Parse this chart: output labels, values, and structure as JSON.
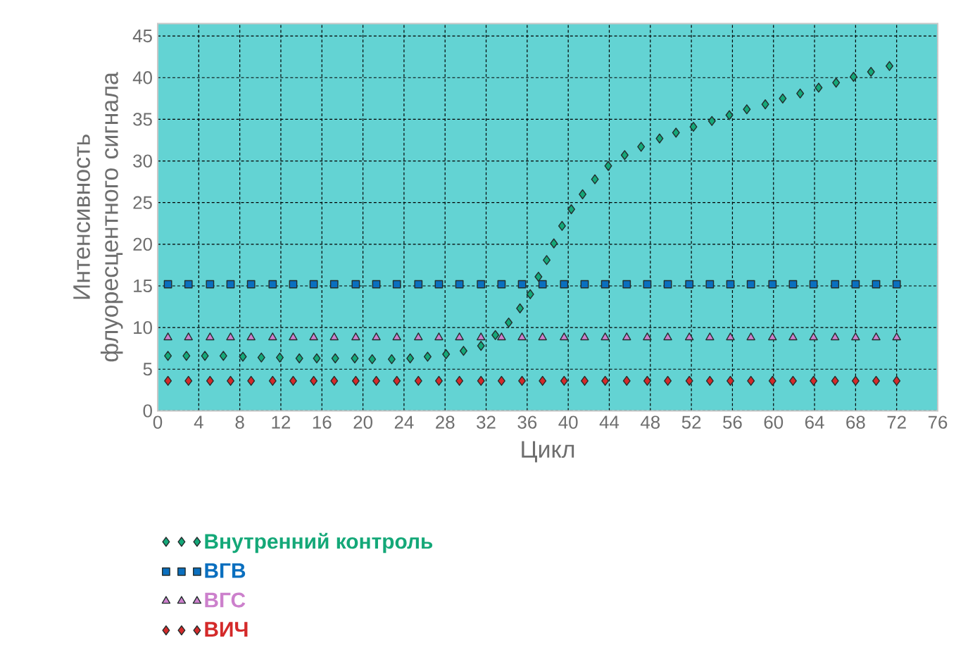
{
  "chart_data": {
    "type": "scatter",
    "xlabel": "Цикл",
    "ylabel": "Интенсивность флуоресцентного сигнала",
    "x": [
      1.0,
      3.0,
      5.1,
      7.1,
      9.1,
      11.2,
      13.2,
      15.2,
      17.2,
      19.3,
      21.3,
      23.3,
      25.4,
      27.4,
      29.4,
      31.5,
      33.5,
      35.5,
      37.5,
      39.6,
      41.6,
      43.6,
      45.7,
      47.7,
      49.7,
      51.8,
      53.8,
      55.8,
      57.8,
      59.9,
      61.9,
      63.9,
      66.0,
      68.0,
      70.0,
      72.0
    ],
    "series": [
      {
        "name": "Внутренний контроль",
        "color": "#14a878",
        "marker": "diamond",
        "x": [
          1.0,
          2.8,
          4.6,
          6.4,
          8.3,
          10.1,
          11.9,
          13.8,
          15.5,
          17.3,
          19.2,
          20.9,
          22.8,
          24.6,
          26.3,
          28.1,
          29.8,
          31.5,
          32.9,
          34.2,
          35.3,
          36.3,
          37.1,
          37.9,
          38.6,
          39.4,
          40.3,
          41.4,
          42.6,
          43.9,
          45.5,
          47.1,
          48.9,
          50.5,
          52.2,
          54.0,
          55.7,
          57.4,
          59.2,
          60.9,
          62.6,
          64.4,
          66.1,
          67.8,
          69.5,
          71.3
        ],
        "values": [
          6.6,
          6.6,
          6.6,
          6.6,
          6.5,
          6.4,
          6.4,
          6.3,
          6.3,
          6.3,
          6.3,
          6.2,
          6.2,
          6.3,
          6.5,
          6.8,
          7.2,
          7.8,
          9.1,
          10.6,
          12.3,
          14.0,
          16.1,
          18.1,
          20.1,
          22.2,
          24.2,
          26.0,
          27.8,
          29.4,
          30.7,
          31.7,
          32.7,
          33.4,
          34.1,
          34.8,
          35.5,
          36.2,
          36.8,
          37.5,
          38.1,
          38.8,
          39.4,
          40.1,
          40.7,
          41.4
        ]
      },
      {
        "name": "ВГВ",
        "color": "#0a6fbf",
        "marker": "square",
        "values": [
          15.2,
          15.2,
          15.2,
          15.2,
          15.2,
          15.2,
          15.2,
          15.2,
          15.2,
          15.2,
          15.2,
          15.2,
          15.2,
          15.2,
          15.2,
          15.2,
          15.2,
          15.2,
          15.2,
          15.2,
          15.2,
          15.2,
          15.2,
          15.2,
          15.2,
          15.2,
          15.2,
          15.2,
          15.2,
          15.2,
          15.2,
          15.2,
          15.2,
          15.2,
          15.2,
          15.2
        ]
      },
      {
        "name": "ВГС",
        "color": "#cc80cc",
        "marker": "triangle",
        "values": [
          8.8,
          8.8,
          8.8,
          8.8,
          8.8,
          8.8,
          8.8,
          8.8,
          8.8,
          8.8,
          8.8,
          8.8,
          8.8,
          8.8,
          8.8,
          8.8,
          8.8,
          8.8,
          8.8,
          8.8,
          8.8,
          8.8,
          8.8,
          8.8,
          8.8,
          8.8,
          8.8,
          8.8,
          8.8,
          8.8,
          8.8,
          8.8,
          8.8,
          8.8,
          8.8,
          8.8
        ]
      },
      {
        "name": "ВИЧ",
        "color": "#d42a2a",
        "marker": "diamond",
        "values": [
          3.6,
          3.6,
          3.6,
          3.6,
          3.6,
          3.6,
          3.6,
          3.6,
          3.6,
          3.6,
          3.6,
          3.6,
          3.6,
          3.6,
          3.6,
          3.6,
          3.6,
          3.6,
          3.6,
          3.6,
          3.6,
          3.6,
          3.6,
          3.6,
          3.6,
          3.6,
          3.6,
          3.6,
          3.6,
          3.6,
          3.6,
          3.6,
          3.6,
          3.6,
          3.6,
          3.6
        ]
      }
    ],
    "xlim": [
      0,
      76
    ],
    "ylim": [
      0,
      46.5
    ],
    "xticks": [
      0,
      4,
      8,
      12,
      16,
      20,
      24,
      28,
      32,
      36,
      40,
      44,
      48,
      52,
      56,
      60,
      64,
      68,
      72,
      76
    ],
    "yticks": [
      0,
      5,
      10,
      15,
      20,
      25,
      30,
      35,
      40,
      45
    ],
    "grid": true,
    "legend": "bottom"
  }
}
